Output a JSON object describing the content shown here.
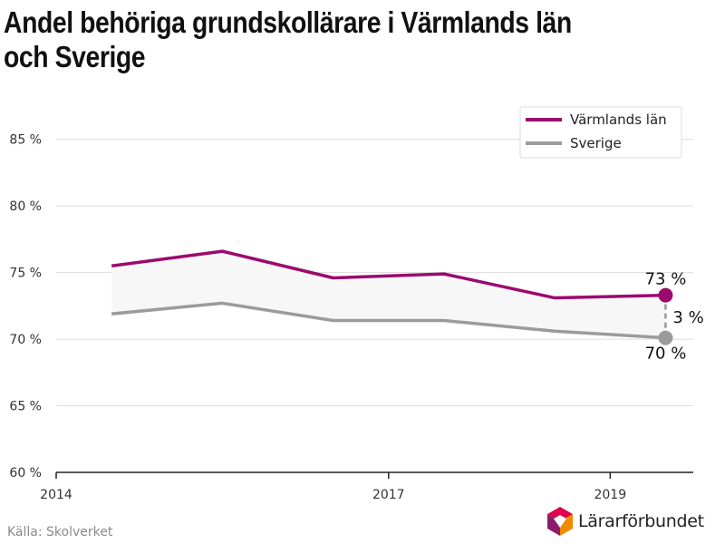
{
  "title": "Andel behöriga grundskollärare i Värmlands län och Sverige",
  "source": "Källa: Skolverket",
  "brand": "Lärarförbundet",
  "colors": {
    "varmland": "#9b0a6e",
    "sverige": "#9b9b9b",
    "band": "#f7f7f7",
    "grid": "#dddddd"
  },
  "chart_data": {
    "type": "line",
    "x": [
      2014.5,
      2015.5,
      2016.5,
      2017.5,
      2018.5,
      2019.5
    ],
    "series": [
      {
        "name": "Värmlands län",
        "color": "#9b0a6e",
        "values": [
          75.5,
          76.6,
          74.6,
          74.9,
          73.1,
          73.3
        ]
      },
      {
        "name": "Sverige",
        "color": "#9b9b9b",
        "values": [
          71.9,
          72.7,
          71.4,
          71.4,
          70.6,
          70.1
        ]
      }
    ],
    "y_ticks": [
      60,
      65,
      70,
      75,
      80,
      85
    ],
    "y_tick_labels": [
      "60 %",
      "65 %",
      "70 %",
      "75 %",
      "80 %",
      "85 %"
    ],
    "x_ticks": [
      2014,
      2017,
      2019
    ],
    "x_tick_labels": [
      "2014",
      "2017",
      "2019"
    ],
    "ylim": [
      60,
      87.5
    ],
    "xlim": [
      2014,
      2019.75
    ],
    "xlabel": "",
    "ylabel": "",
    "legend_position": "top-right",
    "grid": true,
    "shaded_gap_between_series": true,
    "annotations": {
      "varmland_end": "73 %",
      "sverige_end": "70 %",
      "difference": "3 %"
    }
  }
}
